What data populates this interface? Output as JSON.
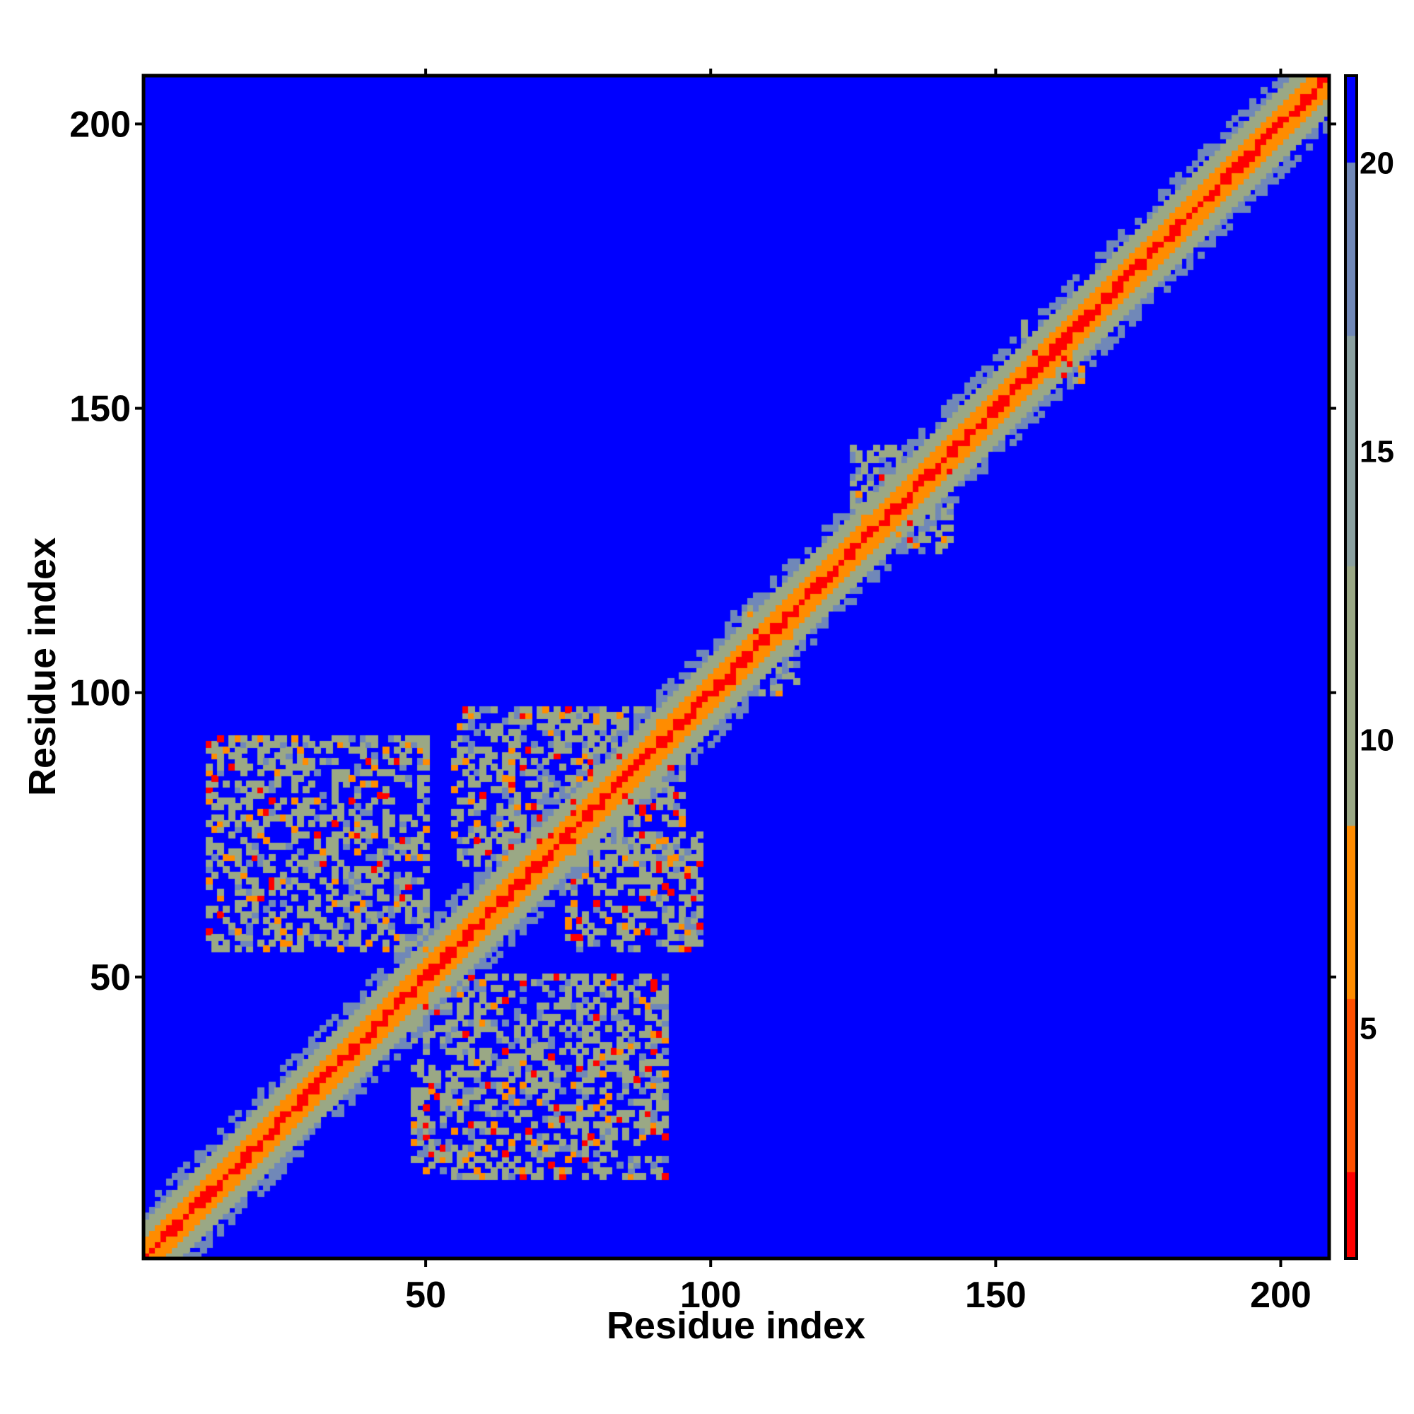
{
  "chart_data": {
    "type": "heatmap",
    "title": "",
    "xlabel": "Residue index",
    "ylabel": "Residue index",
    "xlim": [
      1,
      208
    ],
    "ylim": [
      1,
      208
    ],
    "n_residues": 208,
    "x_ticks": [
      50,
      100,
      150,
      200
    ],
    "y_ticks": [
      50,
      100,
      150,
      200
    ],
    "colorbar": {
      "range": [
        1,
        21.5
      ],
      "ticks": [
        5,
        10,
        15,
        20
      ],
      "colors": {
        "lowest": "#ff0000",
        "low": "#ff8c00",
        "mid": "#9aa885",
        "high": "#7088b8",
        "background": "#0000ff"
      }
    },
    "diagonal_band": {
      "description_values": {
        "diagonal_value": 1.5,
        "near_diagonal_value": 6,
        "band_edge_value": 11
      }
    },
    "contact_regions": [
      {
        "x_range": [
          12,
          50
        ],
        "y_range": [
          55,
          92
        ],
        "value": 11
      },
      {
        "x_range": [
          48,
          92
        ],
        "y_range": [
          15,
          50
        ],
        "value": 11
      },
      {
        "x_range": [
          55,
          95
        ],
        "y_range": [
          70,
          97
        ],
        "value": 11
      },
      {
        "x_range": [
          75,
          98
        ],
        "y_range": [
          55,
          75
        ],
        "value": 11
      },
      {
        "x_range": [
          125,
          142
        ],
        "y_range": [
          125,
          143
        ],
        "value": 11
      },
      {
        "x_range": [
          104,
          115
        ],
        "y_range": [
          100,
          115
        ],
        "value": 11
      },
      {
        "x_range": [
          155,
          165
        ],
        "y_range": [
          155,
          165
        ],
        "value": 11
      }
    ]
  }
}
